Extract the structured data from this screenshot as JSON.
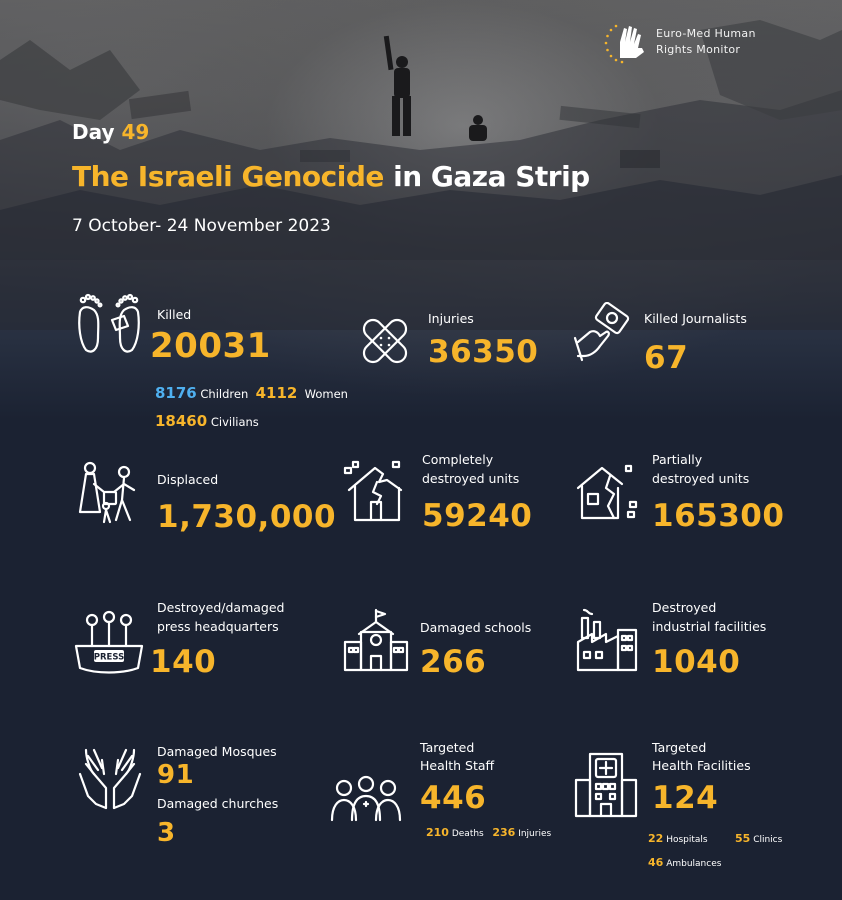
{
  "brand": {
    "line1": "Euro-Med Human",
    "line2": "Rights Monitor"
  },
  "header": {
    "day_label": "Day",
    "day_number": "49",
    "title_highlight": "The Israeli Genocide",
    "title_rest": "in Gaza Strip",
    "date_range": "7 October- 24 November 2023"
  },
  "stats": {
    "killed": {
      "label": "Killed",
      "value": "20031",
      "children_value": "8176",
      "children_label": "Children",
      "women_value": "4112",
      "women_label": "Women",
      "civilians_value": "18460",
      "civilians_label": "Civilians"
    },
    "injuries": {
      "label": "Injuries",
      "value": "36350"
    },
    "journalists": {
      "label": "Killed Journalists",
      "value": "67"
    },
    "displaced": {
      "label": "Displaced",
      "value": "1,730,000"
    },
    "completely_destroyed": {
      "label_line1": "Completely",
      "label_line2": "destroyed units",
      "value": "59240"
    },
    "partially_destroyed": {
      "label_line1": "Partially",
      "label_line2": "destroyed units",
      "value": "165300"
    },
    "press": {
      "label_line1": "Destroyed/damaged",
      "label_line2": "press headquarters",
      "value": "140",
      "icon_text": "PRESS"
    },
    "schools": {
      "label": "Damaged schools",
      "value": "266"
    },
    "industrial": {
      "label_line1": "Destroyed",
      "label_line2": "industrial facilities",
      "value": "1040"
    },
    "mosques": {
      "label": "Damaged Mosques",
      "value": "91",
      "churches_label": "Damaged churches",
      "churches_value": "3"
    },
    "health_staff": {
      "label_line1": "Targeted",
      "label_line2": "Health Staff",
      "value": "446",
      "deaths_value": "210",
      "deaths_label": "Deaths",
      "injuries_value": "236",
      "injuries_label": "Injuries"
    },
    "health_facilities": {
      "label_line1": "Targeted",
      "label_line2": "Health Facilities",
      "value": "124",
      "hospitals_value": "22",
      "hospitals_label": "Hospitals",
      "clinics_value": "55",
      "clinics_label": "Clinics",
      "ambulances_value": "46",
      "ambulances_label": "Ambulances"
    }
  },
  "colors": {
    "accent": "#f7b52b",
    "blue": "#4fb0f0",
    "background": "#1b2232"
  },
  "icons": [
    "footprints-icon",
    "bandage-icon",
    "camera-hand-icon",
    "family-walking-icon",
    "collapsed-house-icon",
    "cracked-house-icon",
    "press-microphones-icon",
    "school-icon",
    "factory-icon",
    "praying-hands-icon",
    "medical-staff-icon",
    "hospital-icon"
  ]
}
